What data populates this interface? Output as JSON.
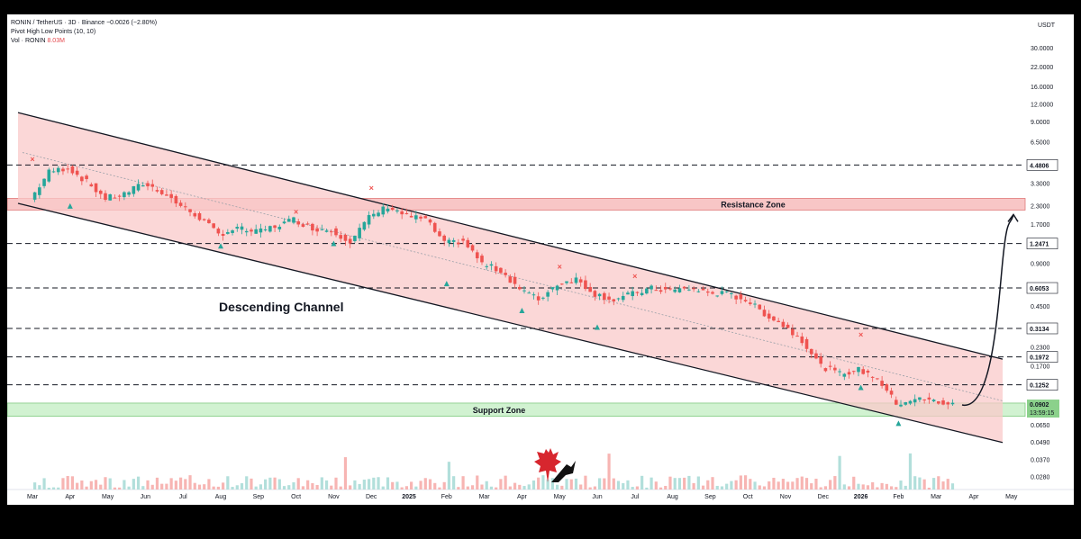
{
  "legend": {
    "symbol_line": "RONIN / TetherUS · 3D · Binance",
    "change": "−0.0026 (−2.80%)",
    "indicator": "Pivot High Low Points (10, 10)",
    "volume_label": "Vol · RONIN",
    "volume_value": "8.03M"
  },
  "chart_data": {
    "type": "candlestick",
    "y_scale": "log",
    "ylim": [
      0.026,
      36
    ],
    "y_unit": "USDT",
    "x_ticks": [
      "Mar",
      "Apr",
      "May",
      "Jun",
      "Jul",
      "Aug",
      "Sep",
      "Oct",
      "Nov",
      "Dec",
      "2025",
      "Feb",
      "Mar",
      "Apr",
      "May",
      "Jun",
      "Jul",
      "Aug",
      "Sep",
      "Oct",
      "Nov",
      "Dec",
      "2026",
      "Feb",
      "Mar",
      "Apr",
      "May"
    ],
    "y_ticks": [
      "30.0000",
      "22.0000",
      "16.0000",
      "12.0000",
      "9.0000",
      "6.5000",
      "3.3000",
      "2.3000",
      "1.7000",
      "0.9000",
      "0.4500",
      "0.2300",
      "0.1700",
      "0.0650",
      "0.0490",
      "0.0370",
      "0.0280"
    ],
    "price_levels": [
      "4.4806",
      "1.2471",
      "0.6053",
      "0.3134",
      "0.1972",
      "0.1252"
    ],
    "current_price": "0.0902",
    "countdown": "13:59:15",
    "zones": [
      {
        "name": "Resistance Zone",
        "low": 2.15,
        "high": 2.6
      },
      {
        "name": "Support Zone",
        "low": 0.075,
        "high": 0.093
      }
    ],
    "annotation": "Descending Channel",
    "channel": {
      "upper": [
        [
          "Mar",
          10.5
        ],
        [
          "May",
          0.19
        ]
      ],
      "lower": [
        [
          "Mar",
          2.4
        ],
        [
          "May",
          0.049
        ]
      ]
    },
    "price_path": [
      [
        "Mar",
        2.55
      ],
      [
        "Mar",
        4.0
      ],
      [
        "Apr",
        4.3
      ],
      [
        "Apr",
        3.4
      ],
      [
        "May",
        2.6
      ],
      [
        "May",
        2.8
      ],
      [
        "Jun",
        3.3
      ],
      [
        "Jun",
        2.9
      ],
      [
        "Jul",
        2.3
      ],
      [
        "Jul",
        1.9
      ],
      [
        "Aug",
        1.45
      ],
      [
        "Aug",
        1.6
      ],
      [
        "Sep",
        1.5
      ],
      [
        "Sep",
        1.65
      ],
      [
        "Oct",
        1.85
      ],
      [
        "Oct",
        1.6
      ],
      [
        "Nov",
        1.55
      ],
      [
        "Nov",
        1.3
      ],
      [
        "Dec",
        1.9
      ],
      [
        "Dec",
        2.3
      ],
      [
        "2025",
        1.95
      ],
      [
        "2025",
        1.85
      ],
      [
        "Feb",
        1.25
      ],
      [
        "Feb",
        1.3
      ],
      [
        "Mar",
        0.9
      ],
      [
        "Mar",
        0.8
      ],
      [
        "Apr",
        0.6
      ],
      [
        "Apr",
        0.5
      ],
      [
        "May",
        0.65
      ],
      [
        "May",
        0.7
      ],
      [
        "Jun",
        0.55
      ],
      [
        "Jun",
        0.5
      ],
      [
        "Jul",
        0.55
      ],
      [
        "Jul",
        0.6
      ],
      [
        "Aug",
        0.58
      ],
      [
        "Aug",
        0.6
      ],
      [
        "Sep",
        0.56
      ],
      [
        "Sep",
        0.55
      ],
      [
        "Oct",
        0.5
      ],
      [
        "Oct",
        0.4
      ],
      [
        "Nov",
        0.33
      ],
      [
        "Nov",
        0.26
      ],
      [
        "Dec",
        0.17
      ],
      [
        "Dec",
        0.15
      ],
      [
        "2026",
        0.16
      ],
      [
        "2026",
        0.14
      ],
      [
        "Feb",
        0.092
      ],
      [
        "Feb",
        0.1
      ],
      [
        "Mar",
        0.096
      ],
      [
        "Mar",
        0.0902
      ]
    ],
    "projection": [
      [
        "Mar",
        0.0902
      ],
      [
        "Apr",
        0.11
      ],
      [
        "Apr",
        0.4
      ],
      [
        "Apr",
        2.0
      ]
    ],
    "pivot_highs": [
      [
        "Mar",
        4.7
      ],
      [
        "Oct",
        2.0
      ],
      [
        "Dec",
        2.95
      ],
      [
        "May",
        0.82
      ],
      [
        "Jul",
        0.7
      ],
      [
        "2026",
        0.27
      ]
    ],
    "pivot_lows": [
      [
        "Apr",
        2.3
      ],
      [
        "Aug",
        1.2
      ],
      [
        "Nov",
        1.25
      ],
      [
        "Feb",
        0.65
      ],
      [
        "Apr",
        0.42
      ],
      [
        "Jun",
        0.32
      ],
      [
        "2026",
        0.12
      ],
      [
        "Feb",
        0.067
      ]
    ]
  },
  "colors": {
    "up": "#26a69a",
    "down": "#ef5350",
    "channel_fill": "#f9c9c9",
    "resistance_fill": "#f7bcbc",
    "support_fill": "#c9f0c9",
    "pivot_high": "#ef5350",
    "pivot_low": "#26a69a",
    "price_badge": "#8bd18b",
    "volume_up": "#b2dfdb",
    "volume_down": "#f7b5b3"
  }
}
